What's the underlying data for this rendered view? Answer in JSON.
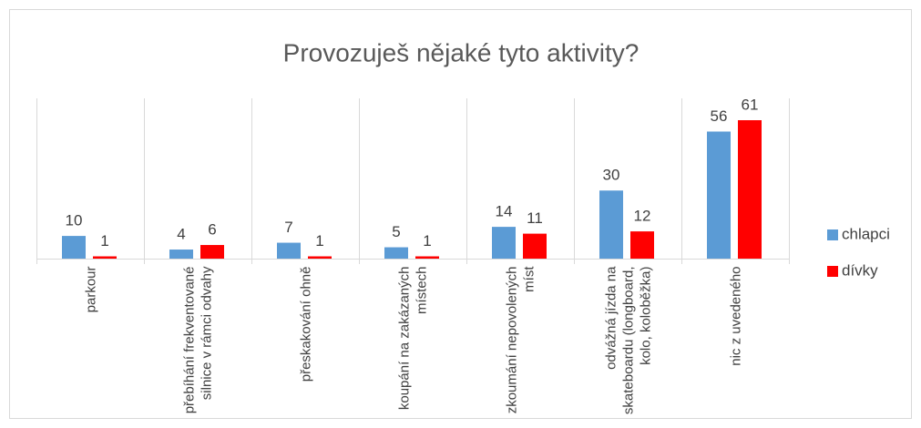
{
  "chart_data": {
    "type": "bar",
    "title": "Provozuješ nějaké tyto aktivity?",
    "categories": [
      "parkour",
      "přebíhání frekventované silnice v rámci odvahy",
      "přeskakování ohně",
      "koupání na zakázaných místech",
      "zkoumání nepovolených míst",
      "odvážná jízda na skateboardu (longboard, kolo, koloběžka)",
      "nic z uvedeného"
    ],
    "series": [
      {
        "name": "chlapci",
        "color": "#5b9bd5",
        "values": [
          10,
          4,
          7,
          5,
          14,
          30,
          56
        ]
      },
      {
        "name": "dívky",
        "color": "#ff0000",
        "values": [
          1,
          6,
          1,
          1,
          11,
          12,
          61
        ]
      }
    ],
    "legend": "right"
  }
}
